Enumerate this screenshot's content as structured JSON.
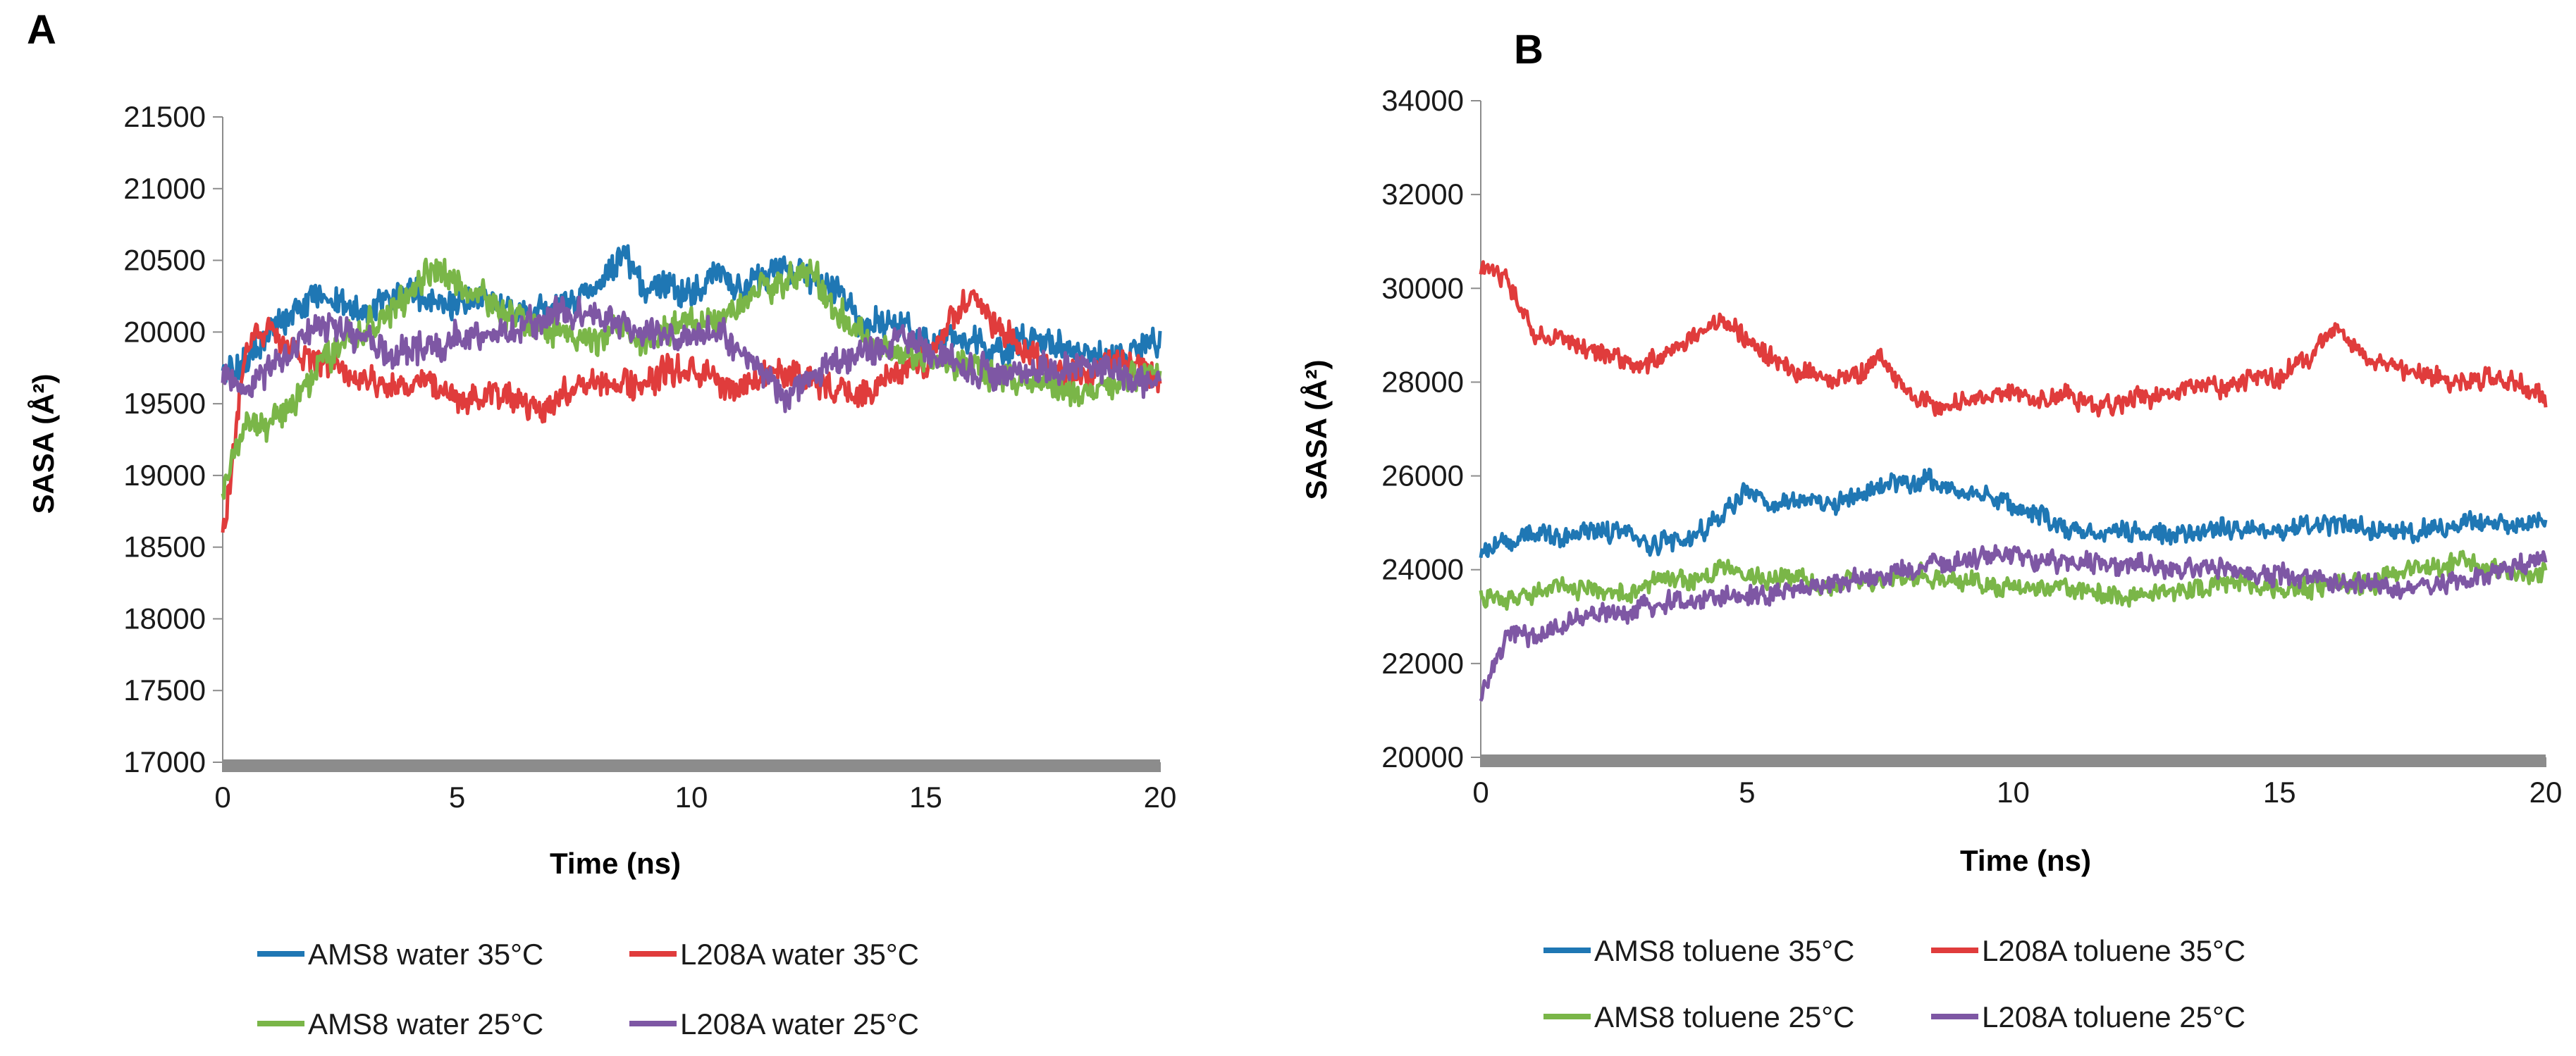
{
  "chart_data": [
    {
      "panel": "A",
      "type": "line",
      "title": "",
      "xlabel": "Time (ns)",
      "ylabel": "SASA (Å²)",
      "xlim": [
        0,
        20
      ],
      "ylim": [
        17000,
        21500
      ],
      "xticks": [
        "0",
        "5",
        "10",
        "15",
        "20"
      ],
      "yticks": [
        "17000",
        "17500",
        "18000",
        "18500",
        "19000",
        "19500",
        "20000",
        "20500",
        "21000",
        "21500"
      ],
      "legend": [
        "AMS8 water 35°C",
        "L208A water 35°C",
        "AMS8 water 25°C",
        "L208A water 25°C"
      ],
      "series": [
        {
          "name": "AMS8 water 35°C",
          "color": "#1f77b4",
          "x": [
            0,
            0.5,
            1,
            1.5,
            2,
            2.5,
            3,
            3.5,
            4,
            4.5,
            5,
            5.5,
            6,
            6.5,
            7,
            7.5,
            8,
            8.5,
            9,
            9.5,
            10,
            10.5,
            11,
            11.5,
            12,
            12.5,
            13,
            13.5,
            14,
            14.5,
            15,
            15.5,
            16,
            16.5,
            17,
            17.5,
            18,
            18.5,
            19,
            19.5,
            20
          ],
          "values": [
            19700,
            19800,
            20000,
            20150,
            20250,
            20200,
            20150,
            20250,
            20300,
            20200,
            20200,
            20250,
            20200,
            20100,
            20150,
            20250,
            20300,
            20550,
            20300,
            20350,
            20250,
            20400,
            20300,
            20350,
            20450,
            20400,
            20300,
            20100,
            20050,
            20000,
            19900,
            19950,
            19950,
            19850,
            19950,
            19900,
            19900,
            19850,
            19800,
            19900,
            19950
          ]
        },
        {
          "name": "L208A water 35°C",
          "color": "#e03c3c",
          "x": [
            0,
            0.5,
            1,
            1.5,
            2,
            2.5,
            3,
            3.5,
            4,
            4.5,
            5,
            5.5,
            6,
            6.5,
            7,
            7.5,
            8,
            8.5,
            9,
            9.5,
            10,
            10.5,
            11,
            11.5,
            12,
            12.5,
            13,
            13.5,
            14,
            14.5,
            15,
            15.5,
            16,
            16.5,
            17,
            17.5,
            18,
            18.5,
            19,
            19.5,
            20
          ],
          "values": [
            18600,
            19900,
            20000,
            19850,
            19800,
            19750,
            19700,
            19650,
            19600,
            19650,
            19550,
            19500,
            19550,
            19500,
            19450,
            19650,
            19700,
            19600,
            19650,
            19750,
            19700,
            19650,
            19600,
            19700,
            19750,
            19650,
            19600,
            19550,
            19650,
            19750,
            19800,
            20050,
            20250,
            20050,
            19900,
            19800,
            19750,
            19700,
            19800,
            19750,
            19700
          ]
        },
        {
          "name": "AMS8 water 25°C",
          "color": "#7ab648",
          "x": [
            0,
            0.5,
            1,
            1.5,
            2,
            2.5,
            3,
            3.5,
            4,
            4.5,
            5,
            5.5,
            6,
            6.5,
            7,
            7.5,
            8,
            8.5,
            9,
            9.5,
            10,
            10.5,
            11,
            11.5,
            12,
            12.5,
            13,
            13.5,
            14,
            14.5,
            15,
            15.5,
            16,
            16.5,
            17,
            17.5,
            18,
            18.5,
            19,
            19.5,
            20
          ],
          "values": [
            18900,
            19400,
            19350,
            19500,
            19750,
            19900,
            20000,
            20100,
            20250,
            20450,
            20350,
            20250,
            20150,
            20050,
            20000,
            19950,
            19950,
            20050,
            19950,
            20000,
            20100,
            20050,
            20150,
            20300,
            20350,
            20450,
            20200,
            20000,
            19900,
            19850,
            19800,
            19750,
            19750,
            19700,
            19650,
            19650,
            19600,
            19600,
            19650,
            19700,
            19700
          ]
        },
        {
          "name": "L208A water 25°C",
          "color": "#7e57a4",
          "x": [
            0,
            0.5,
            1,
            1.5,
            2,
            2.5,
            3,
            3.5,
            4,
            4.5,
            5,
            5.5,
            6,
            6.5,
            7,
            7.5,
            8,
            8.5,
            9,
            9.5,
            10,
            10.5,
            11,
            11.5,
            12,
            12.5,
            13,
            13.5,
            14,
            14.5,
            15,
            15.5,
            16,
            16.5,
            17,
            17.5,
            18,
            18.5,
            19,
            19.5,
            20
          ],
          "values": [
            19700,
            19600,
            19750,
            19900,
            20050,
            20050,
            19950,
            19850,
            19850,
            19900,
            19950,
            19950,
            20000,
            20050,
            20100,
            20150,
            20100,
            20050,
            20000,
            19950,
            19950,
            20000,
            19900,
            19750,
            19550,
            19650,
            19750,
            19850,
            19900,
            19950,
            19900,
            19800,
            19750,
            19700,
            19700,
            19750,
            19750,
            19800,
            19700,
            19650,
            19650
          ]
        }
      ]
    },
    {
      "panel": "B",
      "type": "line",
      "title": "",
      "xlabel": "Time (ns)",
      "ylabel": "SASA (Å²)",
      "xlim": [
        0,
        20
      ],
      "ylim": [
        20000,
        34000
      ],
      "xticks": [
        "0",
        "5",
        "10",
        "15",
        "20"
      ],
      "yticks": [
        "20000",
        "22000",
        "24000",
        "26000",
        "28000",
        "30000",
        "32000",
        "34000"
      ],
      "legend": [
        "AMS8 toluene 35°C",
        "L208A toluene 35°C",
        "AMS8 toluene 25°C",
        "L208A toluene 25°C"
      ],
      "series": [
        {
          "name": "AMS8 toluene 35°C",
          "color": "#1f77b4",
          "x": [
            0,
            0.5,
            1,
            1.5,
            2,
            2.5,
            3,
            3.5,
            4,
            4.5,
            5,
            5.5,
            6,
            6.5,
            7,
            7.5,
            8,
            8.5,
            9,
            9.5,
            10,
            10.5,
            11,
            11.5,
            12,
            12.5,
            13,
            13.5,
            14,
            14.5,
            15,
            15.5,
            16,
            16.5,
            17,
            17.5,
            18,
            18.5,
            19,
            19.5,
            20
          ],
          "values": [
            24400,
            24600,
            24800,
            24700,
            24800,
            24800,
            24600,
            24600,
            24700,
            25200,
            25700,
            25300,
            25500,
            25400,
            25600,
            25800,
            25800,
            25900,
            25700,
            25600,
            25400,
            25100,
            24900,
            24800,
            24800,
            24800,
            24700,
            24800,
            24900,
            24900,
            24800,
            24900,
            25000,
            24900,
            24800,
            24800,
            24900,
            25000,
            25000,
            25000,
            25100
          ]
        },
        {
          "name": "L208A toluene 35°C",
          "color": "#e03c3c",
          "x": [
            0,
            0.5,
            1,
            1.5,
            2,
            2.5,
            3,
            3.5,
            4,
            4.5,
            5,
            5.5,
            6,
            6.5,
            7,
            7.5,
            8,
            8.5,
            9,
            9.5,
            10,
            10.5,
            11,
            11.5,
            12,
            12.5,
            13,
            13.5,
            14,
            14.5,
            15,
            15.5,
            16,
            16.5,
            17,
            17.5,
            18,
            18.5,
            19,
            19.5,
            20
          ],
          "values": [
            30500,
            30200,
            29000,
            28900,
            28700,
            28500,
            28300,
            28600,
            28900,
            29300,
            28900,
            28500,
            28200,
            28000,
            28100,
            28500,
            27800,
            27500,
            27600,
            27700,
            27800,
            27600,
            27700,
            27500,
            27600,
            27700,
            27800,
            27900,
            27900,
            28100,
            28100,
            28500,
            29100,
            28700,
            28300,
            28200,
            28100,
            28000,
            28100,
            28000,
            27700
          ]
        },
        {
          "name": "AMS8 toluene 25°C",
          "color": "#7ab648",
          "x": [
            0,
            0.5,
            1,
            1.5,
            2,
            2.5,
            3,
            3.5,
            4,
            4.5,
            5,
            5.5,
            6,
            6.5,
            7,
            7.5,
            8,
            8.5,
            9,
            9.5,
            10,
            10.5,
            11,
            11.5,
            12,
            12.5,
            13,
            13.5,
            14,
            14.5,
            15,
            15.5,
            16,
            16.5,
            17,
            17.5,
            18,
            18.5,
            19,
            19.5,
            20
          ],
          "values": [
            23500,
            23300,
            23500,
            23600,
            23600,
            23500,
            23600,
            23800,
            23800,
            24000,
            23900,
            23800,
            23800,
            23700,
            23800,
            23800,
            23900,
            23800,
            23800,
            23700,
            23700,
            23600,
            23600,
            23500,
            23400,
            23500,
            23600,
            23600,
            23700,
            23700,
            23600,
            23600,
            23700,
            23700,
            23800,
            24000,
            24100,
            24200,
            24000,
            23900,
            23900
          ]
        },
        {
          "name": "L208A toluene 25°C",
          "color": "#7e57a4",
          "x": [
            0,
            0.5,
            1,
            1.5,
            2,
            2.5,
            3,
            3.5,
            4,
            4.5,
            5,
            5.5,
            6,
            6.5,
            7,
            7.5,
            8,
            8.5,
            9,
            9.5,
            10,
            10.5,
            11,
            11.5,
            12,
            12.5,
            13,
            13.5,
            14,
            14.5,
            15,
            15.5,
            16,
            16.5,
            17,
            17.5,
            18,
            18.5,
            19,
            19.5,
            20
          ],
          "values": [
            21200,
            22700,
            22600,
            22800,
            23000,
            23100,
            23200,
            23300,
            23300,
            23400,
            23400,
            23500,
            23600,
            23700,
            23800,
            23900,
            24000,
            24100,
            24200,
            24300,
            24300,
            24200,
            24200,
            24100,
            24100,
            24100,
            24000,
            24000,
            24000,
            24000,
            23900,
            23900,
            23800,
            23700,
            23600,
            23600,
            23700,
            23800,
            23900,
            24100,
            24300
          ]
        }
      ]
    }
  ],
  "panels": [
    {
      "label": "A",
      "xlabel": "Time (ns)",
      "ylabel": "SASA (Å²)",
      "legend_row1": [
        "AMS8 water 35°C",
        "L208A water 35°C"
      ],
      "legend_row2": [
        "AMS8 water 25°C",
        "L208A water 25°C"
      ]
    },
    {
      "label": "B",
      "xlabel": "Time (ns)",
      "ylabel": "SASA (Å²)",
      "legend_row1": [
        "AMS8 toluene 35°C",
        "L208A toluene 35°C"
      ],
      "legend_row2": [
        "AMS8 toluene 25°C",
        "L208A toluene 25°C"
      ]
    }
  ],
  "colors": {
    "blue": "#1f77b4",
    "red": "#e03c3c",
    "green": "#7ab648",
    "purple": "#7e57a4",
    "axis_floor": "#8c8c8c"
  }
}
